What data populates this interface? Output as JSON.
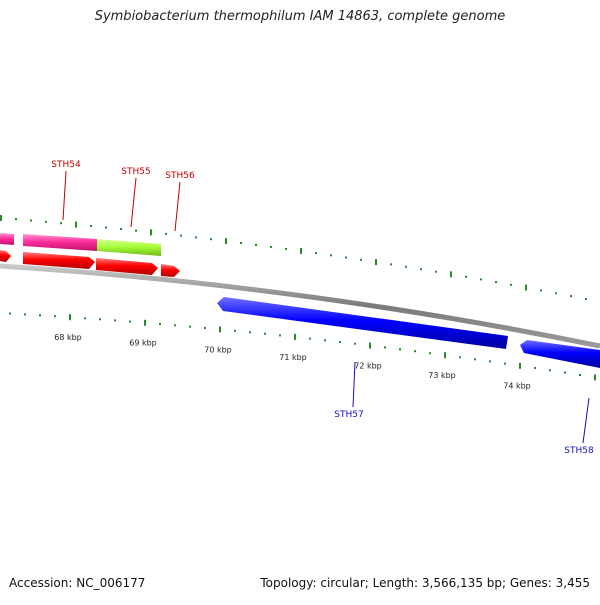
{
  "title": "Symbiobacterium thermophilum IAM 14863, complete genome",
  "footer": {
    "accession": "Accession: NC_006177",
    "summary": "Topology: circular; Length: 3,566,135 bp; Genes: 3,455"
  },
  "colors": {
    "backbone": "#808080",
    "tick": "#2a8a2a",
    "forward_gene_label": "#c00000",
    "reverse_gene_label": "#1010c0",
    "cds_forward": "#ff0000",
    "cds_reverse": "#0000ff",
    "feature_magenta": "#ff3ea5",
    "feature_green": "#a8ff3a"
  },
  "scale_labels": [
    "68 kbp",
    "69 kbp",
    "70 kbp",
    "71 kbp",
    "72 kbp",
    "73 kbp",
    "74 kbp"
  ],
  "genes_forward": [
    "STH54",
    "STH55",
    "STH56"
  ],
  "genes_reverse": [
    "STH57",
    "STH58"
  ]
}
